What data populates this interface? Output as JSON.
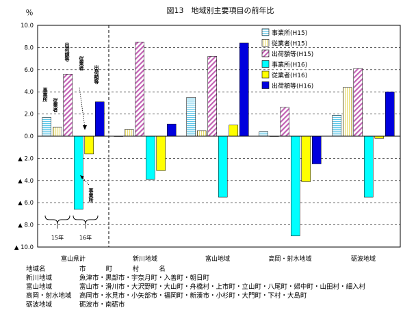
{
  "chart_data": {
    "type": "bar",
    "title": "図13　地域別主要項目の前年比",
    "ylabel": "％",
    "ylim": [
      -10,
      10
    ],
    "yticks": [
      {
        "v": 10,
        "label": "10.0"
      },
      {
        "v": 8,
        "label": "8.0"
      },
      {
        "v": 6,
        "label": "6.0"
      },
      {
        "v": 4,
        "label": "4.0"
      },
      {
        "v": 2,
        "label": "2.0"
      },
      {
        "v": 0,
        "label": "0.0"
      },
      {
        "v": -2,
        "label": "▲ 2.0"
      },
      {
        "v": -4,
        "label": "▲ 4.0"
      },
      {
        "v": -6,
        "label": "▲ 6.0"
      },
      {
        "v": -8,
        "label": "▲ 8.0"
      },
      {
        "v": -10,
        "label": "▲ 10.0"
      }
    ],
    "categories": [
      "富山県計",
      "新川地域",
      "富山地域",
      "高岡・射水地域",
      "砺波地域"
    ],
    "series": [
      {
        "name": "事業所(H15)",
        "values": [
          1.7,
          0.0,
          3.5,
          0.4,
          1.9
        ],
        "color": "#aee4f4",
        "pattern": "hstripe"
      },
      {
        "name": "従業者(H15)",
        "values": [
          0.8,
          0.6,
          0.5,
          0.0,
          4.4
        ],
        "color": "#fffbc8",
        "pattern": "vstripe"
      },
      {
        "name": "出荷額等(H15)",
        "values": [
          5.6,
          8.5,
          7.2,
          2.6,
          6.1
        ],
        "color": "#d8a0d0",
        "pattern": "diag"
      },
      {
        "name": "事業所(H16)",
        "values": [
          -6.6,
          -3.9,
          -5.5,
          -9.0,
          -5.5
        ],
        "color": "#00ffff",
        "pattern": "solid"
      },
      {
        "name": "従業者(H16)",
        "values": [
          -1.6,
          -3.1,
          1.0,
          -4.1,
          -0.2
        ],
        "color": "#ffff00",
        "pattern": "solid"
      },
      {
        "name": "出荷額等(H16)",
        "values": [
          3.1,
          1.1,
          8.4,
          -2.5,
          4.0
        ],
        "color": "#0000dd",
        "pattern": "solid"
      }
    ],
    "grid": "dashed-horizontal",
    "legend": "top-right",
    "annotations": {
      "h15": [
        "事業所",
        "従業者",
        "出荷額等"
      ],
      "h16": [
        "従業者",
        "出荷額等",
        "事業所"
      ],
      "year_labels": [
        "15年",
        "16年"
      ]
    }
  },
  "notes": {
    "header": {
      "key": "地域名",
      "value": "市　　　町　　　村　　　名"
    },
    "rows": [
      {
        "key": "新川地域",
        "value": "魚津市・黒部市・宇奈月町・入善町・朝日町"
      },
      {
        "key": "富山地域",
        "value": "富山市・滑川市・大沢野町・大山町・舟橋村・上市町・立山町・八尾町・婦中町・山田村・細入村"
      },
      {
        "key": "高岡・射水地域",
        "value": "高岡市・氷見市・小矢部市・福岡町・新湊市・小杉町・大門町・下村・大島町"
      },
      {
        "key": "砺波地域",
        "value": "砺波市・南砺市"
      }
    ]
  }
}
